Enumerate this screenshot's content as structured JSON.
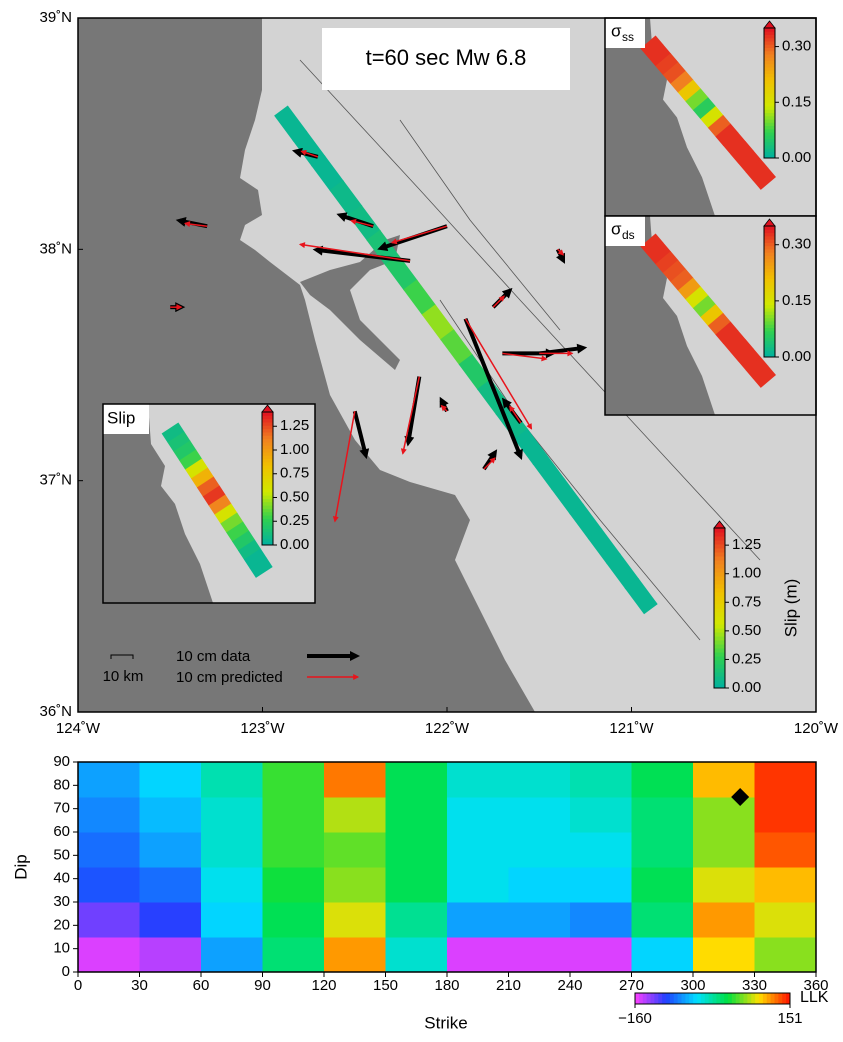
{
  "chart_data": [
    {
      "type": "map",
      "title": "t=60 sec Mw 6.8",
      "xlim": [
        -124,
        -120
      ],
      "ylim": [
        36,
        39
      ],
      "xticks": [
        {
          "value": -124,
          "label": "124˚W"
        },
        {
          "value": -123,
          "label": "123˚W"
        },
        {
          "value": -122,
          "label": "122˚W"
        },
        {
          "value": -121,
          "label": "121˚W"
        },
        {
          "value": -120,
          "label": "120˚W"
        }
      ],
      "yticks": [
        {
          "value": 36,
          "label": "36˚N"
        },
        {
          "value": 37,
          "label": "37˚N"
        },
        {
          "value": 38,
          "label": "38˚N"
        },
        {
          "value": 39,
          "label": "39˚N"
        }
      ],
      "colormap": [
        "#00b0a0",
        "#30d050",
        "#d0e800",
        "#f0c000",
        "#f08020",
        "#e01020"
      ],
      "fault": {
        "start": [
          -122.9,
          38.6
        ],
        "end": [
          -120.9,
          36.45
        ],
        "slip": [
          0.05,
          0.05,
          0.05,
          0.08,
          0.1,
          0.15,
          0.2,
          0.3,
          0.45,
          0.35,
          0.2,
          0.1,
          0.08,
          0.05,
          0.05,
          0.05,
          0.05,
          0.05,
          0.05,
          0.05
        ]
      },
      "colorbar": {
        "label": "Slip (m)",
        "lim": [
          0,
          1.4
        ],
        "ticks": [
          {
            "value": 0,
            "label": "0.00"
          },
          {
            "value": 0.25,
            "label": "0.25"
          },
          {
            "value": 0.5,
            "label": "0.50"
          },
          {
            "value": 0.75,
            "label": "0.75"
          },
          {
            "value": 1,
            "label": "1.00"
          },
          {
            "value": 1.25,
            "label": "1.25"
          }
        ]
      },
      "insets": [
        {
          "label": "Slip",
          "lim": [
            0,
            1.4
          ],
          "ticks": [
            {
              "value": 0,
              "label": "0.00"
            },
            {
              "value": 0.25,
              "label": "0.25"
            },
            {
              "value": 0.5,
              "label": "0.50"
            },
            {
              "value": 0.75,
              "label": "0.75"
            },
            {
              "value": 1,
              "label": "1.00"
            },
            {
              "value": 1.25,
              "label": "1.25"
            }
          ],
          "values": [
            0.1,
            0.15,
            0.2,
            0.3,
            0.6,
            0.9,
            1.2,
            1.3,
            1.1,
            0.6,
            0.4,
            0.3,
            0.2,
            0.1,
            0.05,
            0.05
          ]
        },
        {
          "label": {
            "symbol": "σ",
            "subscript": "ss"
          },
          "lim": [
            0,
            0.35
          ],
          "ticks": [
            {
              "value": 0,
              "label": "0.00"
            },
            {
              "value": 0.15,
              "label": "0.15"
            },
            {
              "value": 0.3,
              "label": "0.30"
            }
          ],
          "values": [
            0.33,
            0.33,
            0.32,
            0.31,
            0.28,
            0.2,
            0.1,
            0.06,
            0.15,
            0.3,
            0.33,
            0.33,
            0.33,
            0.33,
            0.33,
            0.33
          ]
        },
        {
          "label": {
            "symbol": "σ",
            "subscript": "ds"
          },
          "lim": [
            0,
            0.35
          ],
          "ticks": [
            {
              "value": 0,
              "label": "0.00"
            },
            {
              "value": 0.15,
              "label": "0.15"
            },
            {
              "value": 0.3,
              "label": "0.30"
            }
          ],
          "values": [
            0.33,
            0.33,
            0.32,
            0.31,
            0.3,
            0.25,
            0.15,
            0.1,
            0.2,
            0.3,
            0.33,
            0.33,
            0.33,
            0.33,
            0.33,
            0.33
          ]
        }
      ],
      "stations": [
        {
          "lon": -122.7,
          "lat": 38.4,
          "data": [
            -4,
            1
          ],
          "predicted": [
            -3,
            1
          ]
        },
        {
          "lon": -123.3,
          "lat": 38.1,
          "data": [
            -5,
            1
          ],
          "predicted": [
            -4,
            0.5
          ]
        },
        {
          "lon": -122.4,
          "lat": 38.1,
          "data": [
            -6,
            2
          ],
          "predicted": [
            -4,
            1
          ]
        },
        {
          "lon": -122.2,
          "lat": 37.95,
          "data": [
            -17,
            2
          ],
          "predicted": [
            -20,
            3
          ]
        },
        {
          "lon": -122.0,
          "lat": 38.1,
          "data": [
            -12,
            -4
          ],
          "predicted": [
            -10,
            -3
          ]
        },
        {
          "lon": -121.9,
          "lat": 37.7,
          "data": [
            10,
            -25
          ],
          "predicted": [
            12,
            -20
          ]
        },
        {
          "lon": -121.7,
          "lat": 37.55,
          "data": [
            9,
            0
          ],
          "predicted": [
            8,
            -1
          ]
        },
        {
          "lon": -121.5,
          "lat": 37.55,
          "data": [
            8,
            1
          ],
          "predicted": [
            6,
            0
          ]
        },
        {
          "lon": -122.15,
          "lat": 37.45,
          "data": [
            -2,
            -12
          ],
          "predicted": [
            -3,
            -14
          ]
        },
        {
          "lon": -122.5,
          "lat": 37.3,
          "data": [
            2,
            -8
          ],
          "predicted": [
            -3.6,
            -20
          ]
        },
        {
          "lon": -121.6,
          "lat": 37.25,
          "data": [
            -3,
            4
          ],
          "predicted": [
            -2,
            3
          ]
        },
        {
          "lon": -121.8,
          "lat": 37.05,
          "data": [
            2,
            3
          ],
          "predicted": [
            2,
            2
          ]
        },
        {
          "lon": -121.4,
          "lat": 38.0,
          "data": [
            1,
            -2
          ],
          "predicted": [
            1,
            -1
          ]
        },
        {
          "lon": -123.5,
          "lat": 37.75,
          "data": [
            2,
            0
          ],
          "predicted": [
            2,
            0
          ]
        },
        {
          "lon": -122.0,
          "lat": 37.3,
          "data": [
            -1,
            2
          ],
          "predicted": [
            -1,
            1
          ]
        },
        {
          "lon": -121.75,
          "lat": 37.75,
          "data": [
            3,
            3
          ],
          "predicted": [
            2,
            2
          ]
        }
      ],
      "legend": {
        "scale_bar": "10 km",
        "data": "10 cm data",
        "predicted": "10 cm predicted",
        "data_color": "#000000",
        "predicted_color": "#e8141c"
      }
    },
    {
      "type": "heatmap",
      "xlabel": "Strike",
      "ylabel": "Dip",
      "xlim": [
        0,
        360
      ],
      "ylim": [
        0,
        90
      ],
      "xticks": [
        0,
        30,
        60,
        90,
        120,
        150,
        180,
        210,
        240,
        270,
        300,
        330,
        360
      ],
      "yticks": [
        0,
        10,
        20,
        30,
        40,
        50,
        60,
        70,
        80,
        90
      ],
      "xbins": [
        0,
        30,
        60,
        90,
        120,
        150,
        180,
        210,
        240,
        270,
        300,
        330,
        360
      ],
      "ybins": [
        0,
        15,
        30,
        45,
        60,
        75,
        90
      ],
      "z": [
        [
          -150,
          -140,
          -60,
          10,
          110,
          -20,
          -150,
          -150,
          -150,
          -40,
          90,
          60
        ],
        [
          -120,
          -100,
          -40,
          20,
          80,
          0,
          -60,
          -60,
          -70,
          10,
          110,
          80
        ],
        [
          -90,
          -80,
          -30,
          30,
          60,
          20,
          -30,
          -40,
          -40,
          20,
          80,
          100
        ],
        [
          -80,
          -60,
          -20,
          40,
          50,
          20,
          -30,
          -30,
          -30,
          10,
          60,
          130
        ],
        [
          -70,
          -50,
          -20,
          40,
          70,
          20,
          -30,
          -30,
          -20,
          10,
          60,
          140
        ],
        [
          -60,
          -40,
          -10,
          40,
          120,
          20,
          -20,
          -20,
          -10,
          20,
          100,
          140
        ]
      ],
      "colormap": [
        "#ff40ff",
        "#2040ff",
        "#00e0ff",
        "#00e040",
        "#ffe000",
        "#ff1000"
      ],
      "colorbar": {
        "label": "LLK",
        "lim": [
          -160,
          151
        ],
        "ticks": [
          {
            "value": -160,
            "label": "−160"
          },
          151
        ]
      },
      "marker": {
        "strike": 323,
        "dip": 75
      }
    }
  ]
}
